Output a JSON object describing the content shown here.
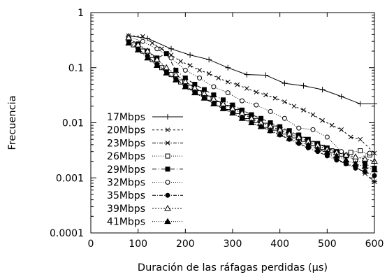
{
  "chart_data": {
    "type": "line",
    "title": "",
    "xlabel": "Duración de las ráfagas perdidas (μs)",
    "ylabel": "Frecuencia",
    "xlim": [
      0,
      600
    ],
    "ylim": [
      0.0001,
      1
    ],
    "yscale": "log",
    "grid": false,
    "legend_position": "center-left",
    "x_ticks": [
      0,
      100,
      200,
      300,
      400,
      500,
      600
    ],
    "x_tick_labels": [
      "0",
      "100",
      "200",
      "300",
      "400",
      "500",
      "600"
    ],
    "y_ticks": [
      0.0001,
      0.001,
      0.01,
      0.1,
      1
    ],
    "y_tick_labels": [
      "0.0001",
      "0.001",
      "0.01",
      "0.1",
      "1"
    ],
    "series": [
      {
        "name": "17Mbps",
        "marker": "plus",
        "dash": "none",
        "x": [
          80,
          120,
          170,
          210,
          250,
          290,
          330,
          370,
          410,
          450,
          490,
          530,
          570,
          600
        ],
        "y": [
          0.38,
          0.34,
          0.22,
          0.17,
          0.14,
          0.1,
          0.075,
          0.073,
          0.052,
          0.047,
          0.04,
          0.03,
          0.022,
          0.022
        ]
      },
      {
        "name": "20Mbps",
        "marker": "x",
        "dash": "3,3",
        "x": [
          80,
          110,
          130,
          150,
          170,
          190,
          210,
          230,
          250,
          270,
          290,
          310,
          330,
          350,
          370,
          390,
          410,
          430,
          450,
          470,
          490,
          510,
          530,
          550,
          570,
          600
        ],
        "y": [
          0.38,
          0.37,
          0.28,
          0.22,
          0.17,
          0.13,
          0.11,
          0.09,
          0.078,
          0.065,
          0.055,
          0.049,
          0.042,
          0.036,
          0.032,
          0.028,
          0.024,
          0.02,
          0.017,
          0.014,
          0.011,
          0.009,
          0.0075,
          0.0055,
          0.005,
          0.0028
        ]
      },
      {
        "name": "23Mbps",
        "marker": "asterisk",
        "dash": "5,2,1,2",
        "x": [
          80,
          100,
          120,
          140,
          160,
          180,
          200,
          220,
          240,
          260,
          280,
          300,
          320,
          340,
          360,
          380,
          400,
          420,
          440,
          460,
          480,
          500,
          520,
          540,
          560,
          580,
          600
        ],
        "y": [
          0.33,
          0.24,
          0.17,
          0.12,
          0.09,
          0.065,
          0.048,
          0.038,
          0.03,
          0.025,
          0.021,
          0.017,
          0.014,
          0.012,
          0.01,
          0.0085,
          0.0072,
          0.006,
          0.0052,
          0.0043,
          0.0034,
          0.0028,
          0.0022,
          0.0018,
          0.0016,
          0.0012,
          0.00085
        ]
      },
      {
        "name": "26Mbps",
        "marker": "square-open",
        "dash": "1,2",
        "x": [
          90,
          110,
          130,
          150,
          170,
          190,
          210,
          230,
          250,
          270,
          290,
          310,
          330,
          350,
          370,
          390,
          410,
          430,
          450,
          470,
          490,
          510,
          530,
          550,
          570,
          590
        ],
        "y": [
          0.26,
          0.2,
          0.14,
          0.1,
          0.075,
          0.055,
          0.044,
          0.035,
          0.028,
          0.022,
          0.019,
          0.016,
          0.013,
          0.011,
          0.009,
          0.008,
          0.0068,
          0.0058,
          0.005,
          0.0042,
          0.0036,
          0.0031,
          0.0027,
          0.0029,
          0.0031,
          0.0026
        ]
      },
      {
        "name": "29Mbps",
        "marker": "square-filled",
        "dash": "6,3,1,3",
        "x": [
          80,
          100,
          120,
          140,
          160,
          180,
          200,
          220,
          240,
          260,
          280,
          300,
          320,
          340,
          360,
          380,
          400,
          420,
          440,
          460,
          480,
          500,
          520,
          540,
          560,
          580,
          600
        ],
        "y": [
          0.34,
          0.27,
          0.2,
          0.15,
          0.18,
          0.09,
          0.065,
          0.05,
          0.04,
          0.032,
          0.026,
          0.021,
          0.017,
          0.014,
          0.012,
          0.01,
          0.0085,
          0.0072,
          0.006,
          0.005,
          0.0042,
          0.0035,
          0.003,
          0.0025,
          0.0021,
          0.0018,
          0.0015
        ]
      },
      {
        "name": "32Mbps",
        "marker": "circle-open",
        "dash": "1,2",
        "x": [
          80,
          110,
          140,
          170,
          200,
          230,
          260,
          290,
          320,
          350,
          380,
          410,
          440,
          470,
          500,
          530,
          560,
          590
        ],
        "y": [
          0.36,
          0.3,
          0.22,
          0.15,
          0.09,
          0.065,
          0.045,
          0.035,
          0.025,
          0.021,
          0.016,
          0.012,
          0.008,
          0.0075,
          0.0055,
          0.003,
          0.0021,
          0.0028
        ]
      },
      {
        "name": "35Mbps",
        "marker": "circle-filled",
        "dash": "5,2,1,2",
        "x": [
          80,
          100,
          120,
          140,
          160,
          180,
          200,
          220,
          240,
          260,
          280,
          300,
          320,
          340,
          360,
          380,
          400,
          420,
          440,
          460,
          480,
          500,
          520,
          540,
          560,
          580,
          600
        ],
        "y": [
          0.3,
          0.22,
          0.16,
          0.115,
          0.085,
          0.062,
          0.047,
          0.036,
          0.028,
          0.022,
          0.018,
          0.015,
          0.012,
          0.01,
          0.0085,
          0.0071,
          0.006,
          0.005,
          0.0042,
          0.0035,
          0.003,
          0.0025,
          0.0021,
          0.0018,
          0.0015,
          0.0013,
          0.0011
        ]
      },
      {
        "name": "39Mbps",
        "marker": "triangle-open",
        "dash": "2,2",
        "x": [
          80,
          100,
          120,
          140,
          160,
          180,
          200,
          220,
          240,
          260,
          280,
          300,
          320,
          340,
          360,
          380,
          400,
          420,
          440,
          460,
          480,
          500,
          520,
          540,
          560,
          580,
          600
        ],
        "y": [
          0.35,
          0.26,
          0.2,
          0.14,
          0.1,
          0.075,
          0.056,
          0.043,
          0.034,
          0.027,
          0.022,
          0.018,
          0.015,
          0.012,
          0.01,
          0.0087,
          0.0074,
          0.0063,
          0.0054,
          0.0046,
          0.0039,
          0.0033,
          0.0029,
          0.0026,
          0.0024,
          0.0022,
          0.002
        ]
      },
      {
        "name": "41Mbps",
        "marker": "triangle-filled",
        "dash": "1,2",
        "x": [
          80,
          100,
          120,
          140,
          160,
          180,
          200,
          220,
          240,
          260,
          280,
          300,
          320,
          340,
          360,
          380,
          400,
          420,
          440,
          460,
          480,
          500,
          520,
          540,
          560,
          580,
          600
        ],
        "y": [
          0.28,
          0.21,
          0.15,
          0.11,
          0.08,
          0.06,
          0.045,
          0.035,
          0.028,
          0.022,
          0.018,
          0.015,
          0.012,
          0.01,
          0.0085,
          0.0072,
          0.0062,
          0.0052,
          0.0045,
          0.0039,
          0.0033,
          0.0029,
          0.0025,
          0.0021,
          0.0018,
          0.0016,
          0.0014
        ]
      }
    ]
  }
}
